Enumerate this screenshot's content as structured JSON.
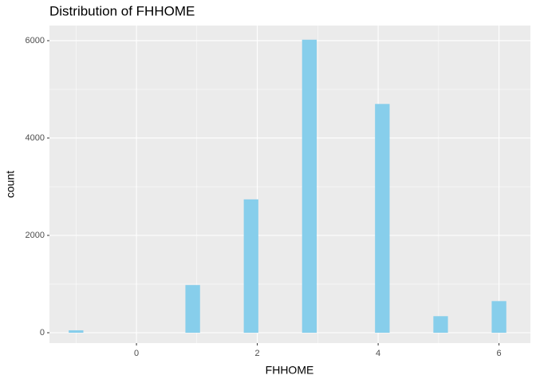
{
  "chart_data": {
    "type": "histogram",
    "title": "Distribution of FHHOME",
    "x_label": "FHHOME",
    "y_label": "count",
    "bins": [
      -1.121,
      -0.879,
      -0.638,
      -0.397,
      -0.155,
      0.086,
      0.328,
      0.569,
      0.81,
      1.052,
      1.293,
      1.534,
      1.776,
      2.017,
      2.259,
      2.5,
      2.741,
      2.983,
      3.224,
      3.466,
      3.707,
      3.948,
      4.19,
      4.431,
      4.672,
      4.914,
      5.155,
      5.397,
      5.638,
      5.879,
      6.121
    ],
    "values": [
      50,
      0,
      0,
      0,
      0,
      0,
      0,
      0,
      980,
      0,
      0,
      0,
      2740,
      0,
      0,
      0,
      6020,
      0,
      0,
      0,
      0,
      4700,
      0,
      0,
      0,
      340,
      0,
      0,
      0,
      650
    ],
    "color": "#87ceeb",
    "xlim": [
      -1.44,
      6.52
    ],
    "xticks": [
      0,
      2,
      4,
      6
    ],
    "ylim": [
      -213,
      6311
    ],
    "yticks": [
      0,
      2000,
      4000,
      6000
    ],
    "grid": true
  }
}
